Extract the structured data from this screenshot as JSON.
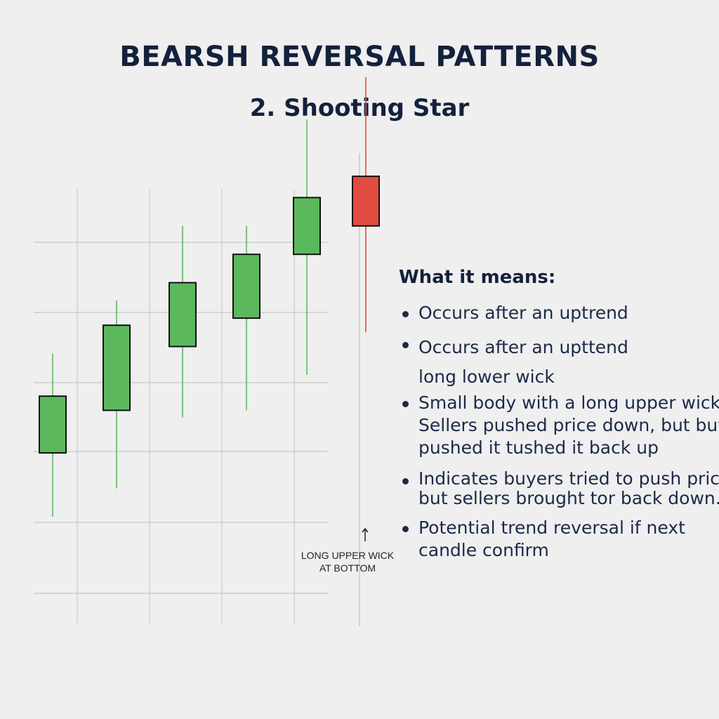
{
  "chart_data": {
    "type": "candlestick",
    "title": "BEARSH REVERSAL PATTERNS",
    "subtitle": "2. Shooting Star",
    "candles": [
      {
        "open": 0.0,
        "close": 0.8,
        "high": 1.4,
        "low": -0.9,
        "color": "#5cb85c",
        "direction": "up"
      },
      {
        "open": 0.6,
        "close": 1.8,
        "high": 2.15,
        "low": -0.5,
        "color": "#5cb85c",
        "direction": "up"
      },
      {
        "open": 1.5,
        "close": 2.4,
        "high": 3.2,
        "low": 0.5,
        "color": "#5cb85c",
        "direction": "up"
      },
      {
        "open": 1.9,
        "close": 2.8,
        "high": 3.2,
        "low": 0.6,
        "color": "#5cb85c",
        "direction": "up"
      },
      {
        "open": 2.8,
        "close": 3.6,
        "high": 4.7,
        "low": 1.1,
        "color": "#5cb85c",
        "direction": "up"
      },
      {
        "open": 3.9,
        "close": 3.2,
        "high": 5.3,
        "low": 1.7,
        "color": "#e14b40",
        "direction": "down"
      }
    ],
    "grid": true,
    "annotation": "LONG UPPER WICK\nAT BOTTOM"
  },
  "explanation": {
    "heading": "What it means:",
    "bullets": [
      "Occurs after an uptrend",
      "Occurs after an upttend\nlong lower wick",
      "Small body with a long upper wick\nSellers pushed price down, but buyers\npushed it tushed it back up",
      "Indicates buyers tried to push price\nbut sellers brought tor back down.",
      "Potential trend reversal if next\ncandle confirm"
    ]
  },
  "colors": {
    "bullish": "#5cb85c",
    "bearish": "#e14b40",
    "grid": "#c8c8c8",
    "text": "#14213d"
  }
}
